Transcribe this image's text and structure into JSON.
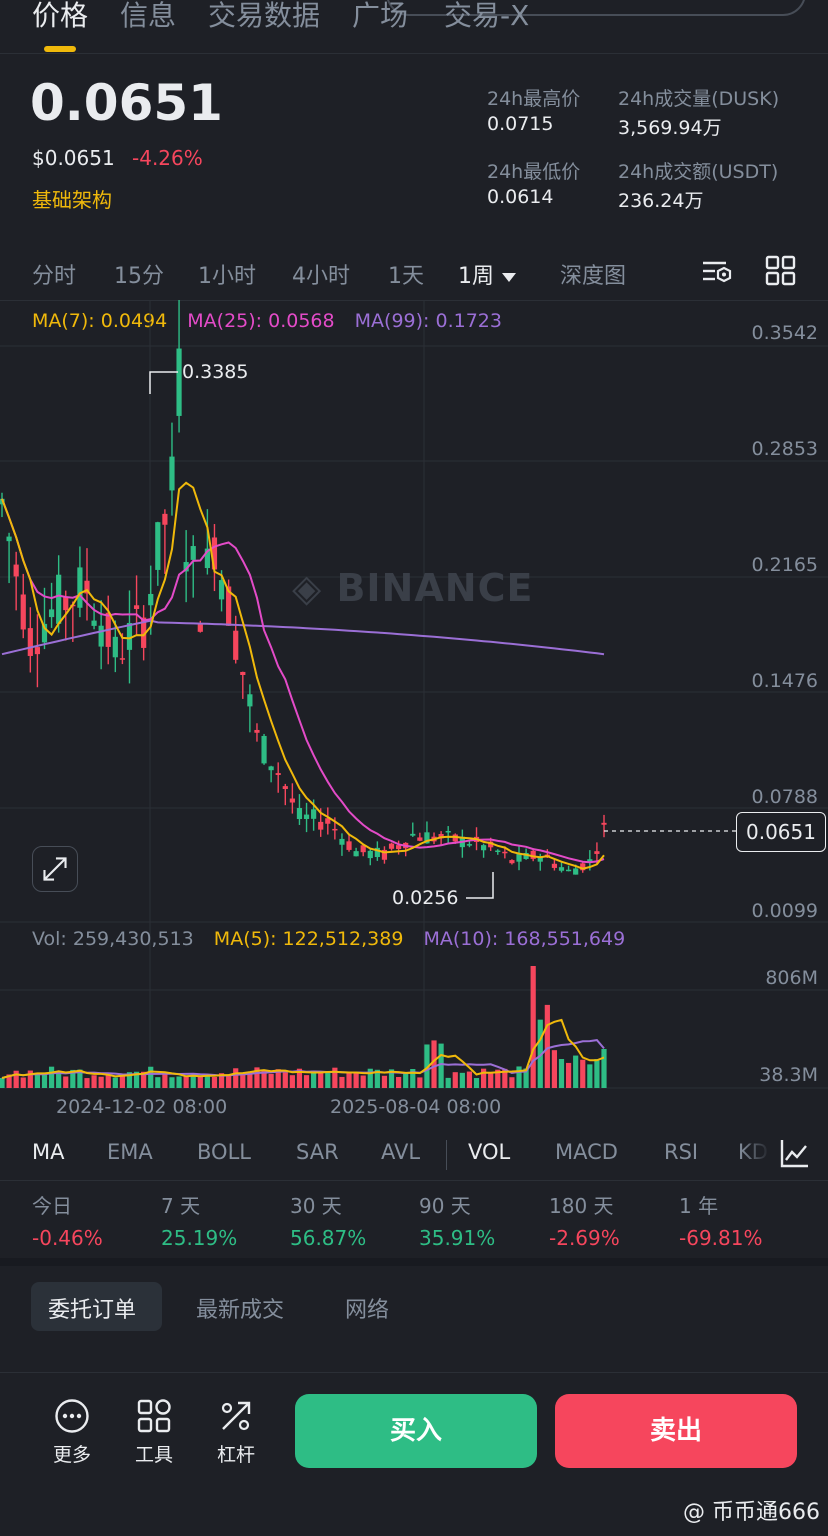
{
  "top_tabs": [
    {
      "label": "价格",
      "active": true
    },
    {
      "label": "信息",
      "active": false
    },
    {
      "label": "交易数据",
      "active": false
    },
    {
      "label": "广场",
      "active": false
    },
    {
      "label": "交易-X",
      "active": false
    }
  ],
  "header": {
    "price": "0.0651",
    "price_usd": "$0.0651",
    "change": "-4.26%",
    "tag": "基础架构",
    "stats": {
      "high_label": "24h最高价",
      "high_value": "0.0715",
      "vol_label": "24h成交量(DUSK)",
      "vol_value": "3,569.94万",
      "low_label": "24h最低价",
      "low_value": "0.0614",
      "amount_label": "24h成交额(USDT)",
      "amount_value": "236.24万"
    }
  },
  "intervals": [
    "分时",
    "15分",
    "1小时",
    "4小时",
    "1天",
    "1周",
    "深度图"
  ],
  "active_interval": "1周",
  "ma_legend": {
    "ma7": "MA(7): 0.0494",
    "ma25": "MA(25): 0.0568",
    "ma99": "MA(99): 0.1723"
  },
  "chart": {
    "y_ticks": [
      "0.3542",
      "0.2853",
      "0.2165",
      "0.1476",
      "0.0788",
      "0.0099"
    ],
    "current_price": "0.0651",
    "high_label": "0.3385",
    "low_label": "0.0256",
    "watermark": "BINANCE",
    "vol_ticks": [
      "806M",
      "38.3M"
    ],
    "x_ticks": [
      "2024-12-02 08:00",
      "2025-08-04 08:00"
    ]
  },
  "vol_legend": {
    "vol": "Vol: 259,430,513",
    "ma5": "MA(5): 122,512,389",
    "ma10": "MA(10): 168,551,649"
  },
  "indicators": [
    "MA",
    "EMA",
    "BOLL",
    "SAR",
    "AVL",
    "VOL",
    "MACD",
    "RSI",
    "KD"
  ],
  "performance": [
    {
      "label": "今日",
      "value": "-0.46%"
    },
    {
      "label": "7 天",
      "value": "25.19%"
    },
    {
      "label": "30 天",
      "value": "56.87%"
    },
    {
      "label": "90 天",
      "value": "35.91%"
    },
    {
      "label": "180 天",
      "value": "-2.69%"
    },
    {
      "label": "1 年",
      "value": "-69.81%"
    }
  ],
  "bottom_tabs": [
    "委托订单",
    "最新成交",
    "网络"
  ],
  "actions": {
    "more": "更多",
    "tools": "工具",
    "leverage": "杠杆",
    "buy": "买入",
    "sell": "卖出"
  },
  "footer_watermark": "@ 币币通666",
  "colors": {
    "up": "#2ebd85",
    "down": "#f6465d",
    "ma7": "#f0b90b",
    "ma25": "#e34bc8",
    "ma99": "#9b6fd6",
    "accent": "#f0b90b"
  },
  "chart_data": {
    "type": "candlestick",
    "interval": "1周",
    "y_range": [
      0.0099,
      0.3542
    ],
    "series": [
      {
        "name": "MA(7)",
        "value": 0.0494
      },
      {
        "name": "MA(25)",
        "value": 0.0568
      },
      {
        "name": "MA(99)",
        "value": 0.1723
      }
    ],
    "annotations": {
      "max": 0.3385,
      "min": 0.0256,
      "last": 0.0651
    },
    "volume": {
      "last": 259430513,
      "ma5": 122512389,
      "ma10": 168551649,
      "y_ticks": [
        "806M",
        "38.3M"
      ]
    }
  }
}
